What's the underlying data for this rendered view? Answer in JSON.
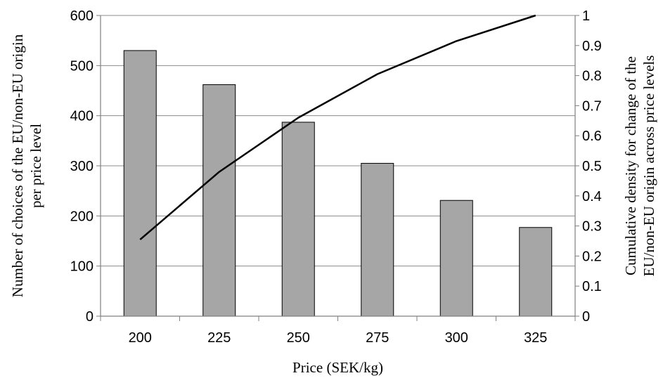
{
  "chart_data": {
    "type": "bar",
    "title": "",
    "categories": [
      "200",
      "225",
      "250",
      "275",
      "300",
      "325"
    ],
    "series": [
      {
        "kind": "bar",
        "axis": "left",
        "values": [
          530,
          462,
          387,
          305,
          231,
          177
        ]
      },
      {
        "kind": "line",
        "axis": "right",
        "values": [
          0.255,
          0.48,
          0.66,
          0.805,
          0.915,
          1.0
        ]
      }
    ],
    "xlabel": "Price (SEK/kg)",
    "ylabel": [
      "Number of choices of the EU/non-EU origin",
      "per price level"
    ],
    "y2label": [
      "Cumulative density  for change of the",
      "EU/non-EU origin across price levels"
    ],
    "ylim": [
      0,
      600
    ],
    "yticks": [
      0,
      100,
      200,
      300,
      400,
      500,
      600
    ],
    "y2lim": [
      0,
      1
    ],
    "y2ticks": [
      "0",
      "0.1",
      "0.2",
      "0.3",
      "0.4",
      "0.5",
      "0.6",
      "0.7",
      "0.8",
      "0.9",
      "1"
    ],
    "grid": true,
    "legend": "none",
    "colors": {
      "bar_fill": "#a6a6a6",
      "bar_stroke": "#000000",
      "line": "#000000",
      "grid": "#8c8c8c",
      "axis": "#7f7f7f"
    }
  }
}
